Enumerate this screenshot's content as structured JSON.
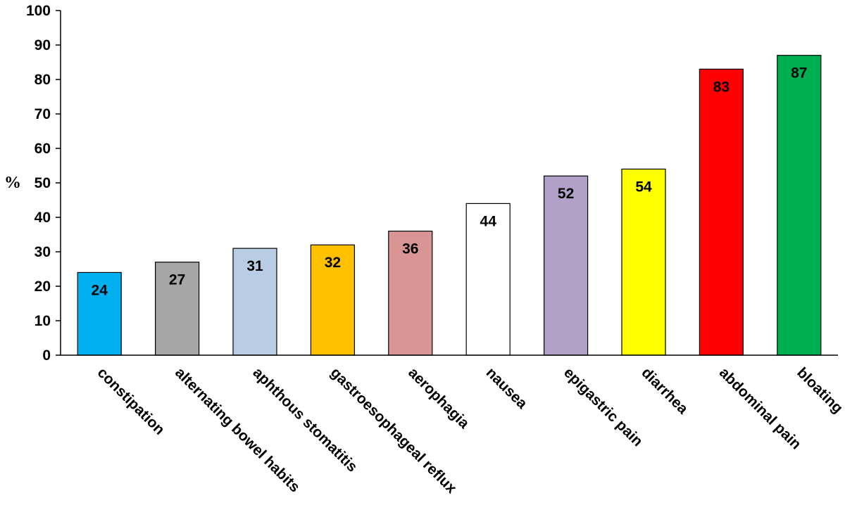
{
  "chart_data": {
    "type": "bar",
    "title": "",
    "xlabel": "",
    "ylabel": "%",
    "ylim": [
      0,
      100
    ],
    "yticks": [
      0,
      10,
      20,
      30,
      40,
      50,
      60,
      70,
      80,
      90,
      100
    ],
    "grid": false,
    "legend": "none",
    "categories": [
      "constipation",
      "alternating bowel habits",
      "aphthous stomatitis",
      "gastroesophageal reflux",
      "aerophagia",
      "nausea",
      "epigastric pain",
      "diarrhea",
      "abdominal pain",
      "bloating"
    ],
    "values": [
      24,
      27,
      31,
      32,
      36,
      44,
      52,
      54,
      83,
      87
    ],
    "colors": [
      "#00b0f0",
      "#a6a6a6",
      "#b8cce4",
      "#ffc000",
      "#d99594",
      "#ffffff",
      "#b1a0c7",
      "#ffff00",
      "#ff0000",
      "#00b050"
    ],
    "data_labels": [
      "24",
      "27",
      "31",
      "32",
      "36",
      "44",
      "52",
      "54",
      "83",
      "87"
    ]
  }
}
